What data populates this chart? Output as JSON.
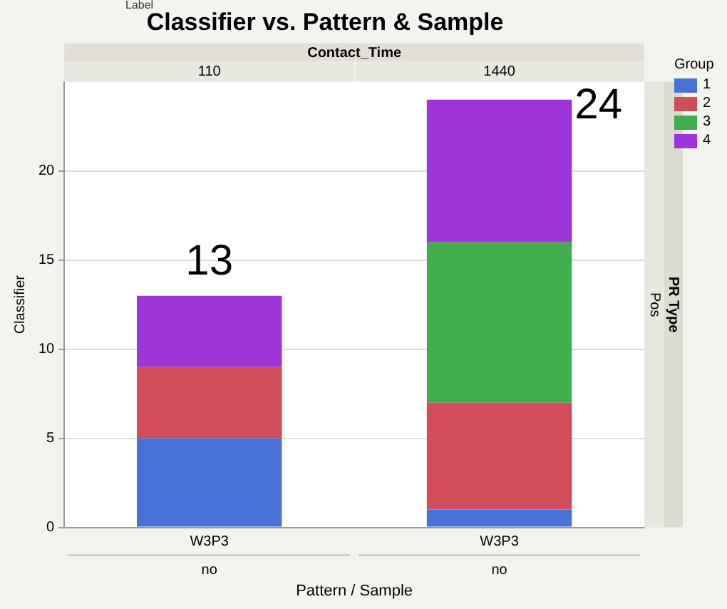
{
  "chart_data": {
    "type": "bar",
    "title": "Classifier vs. Pattern & Sample",
    "xlabel": "Pattern / Sample",
    "ylabel": "Classifier",
    "legend_title": "Group",
    "categories": [
      "W3P3",
      "W3P3"
    ],
    "stacked": true,
    "series": [
      {
        "name": "1",
        "color": "#4672d8",
        "values": [
          5,
          1
        ]
      },
      {
        "name": "2",
        "color": "#d24d5a",
        "values": [
          4,
          6
        ]
      },
      {
        "name": "3",
        "color": "#42ad4e",
        "values": [
          0,
          9
        ]
      },
      {
        "name": "4",
        "color": "#9e35d8",
        "values": [
          4,
          8
        ]
      }
    ],
    "ylim": [
      0,
      25
    ],
    "yticks": [
      0,
      5,
      10,
      15,
      20
    ],
    "grid": "y",
    "legend": "top right",
    "totals": [
      "13",
      "24"
    ],
    "annotations": [
      "Label",
      "Contact_Time",
      "110",
      "1440",
      "no",
      "no",
      "PR Type",
      "Pos"
    ]
  }
}
